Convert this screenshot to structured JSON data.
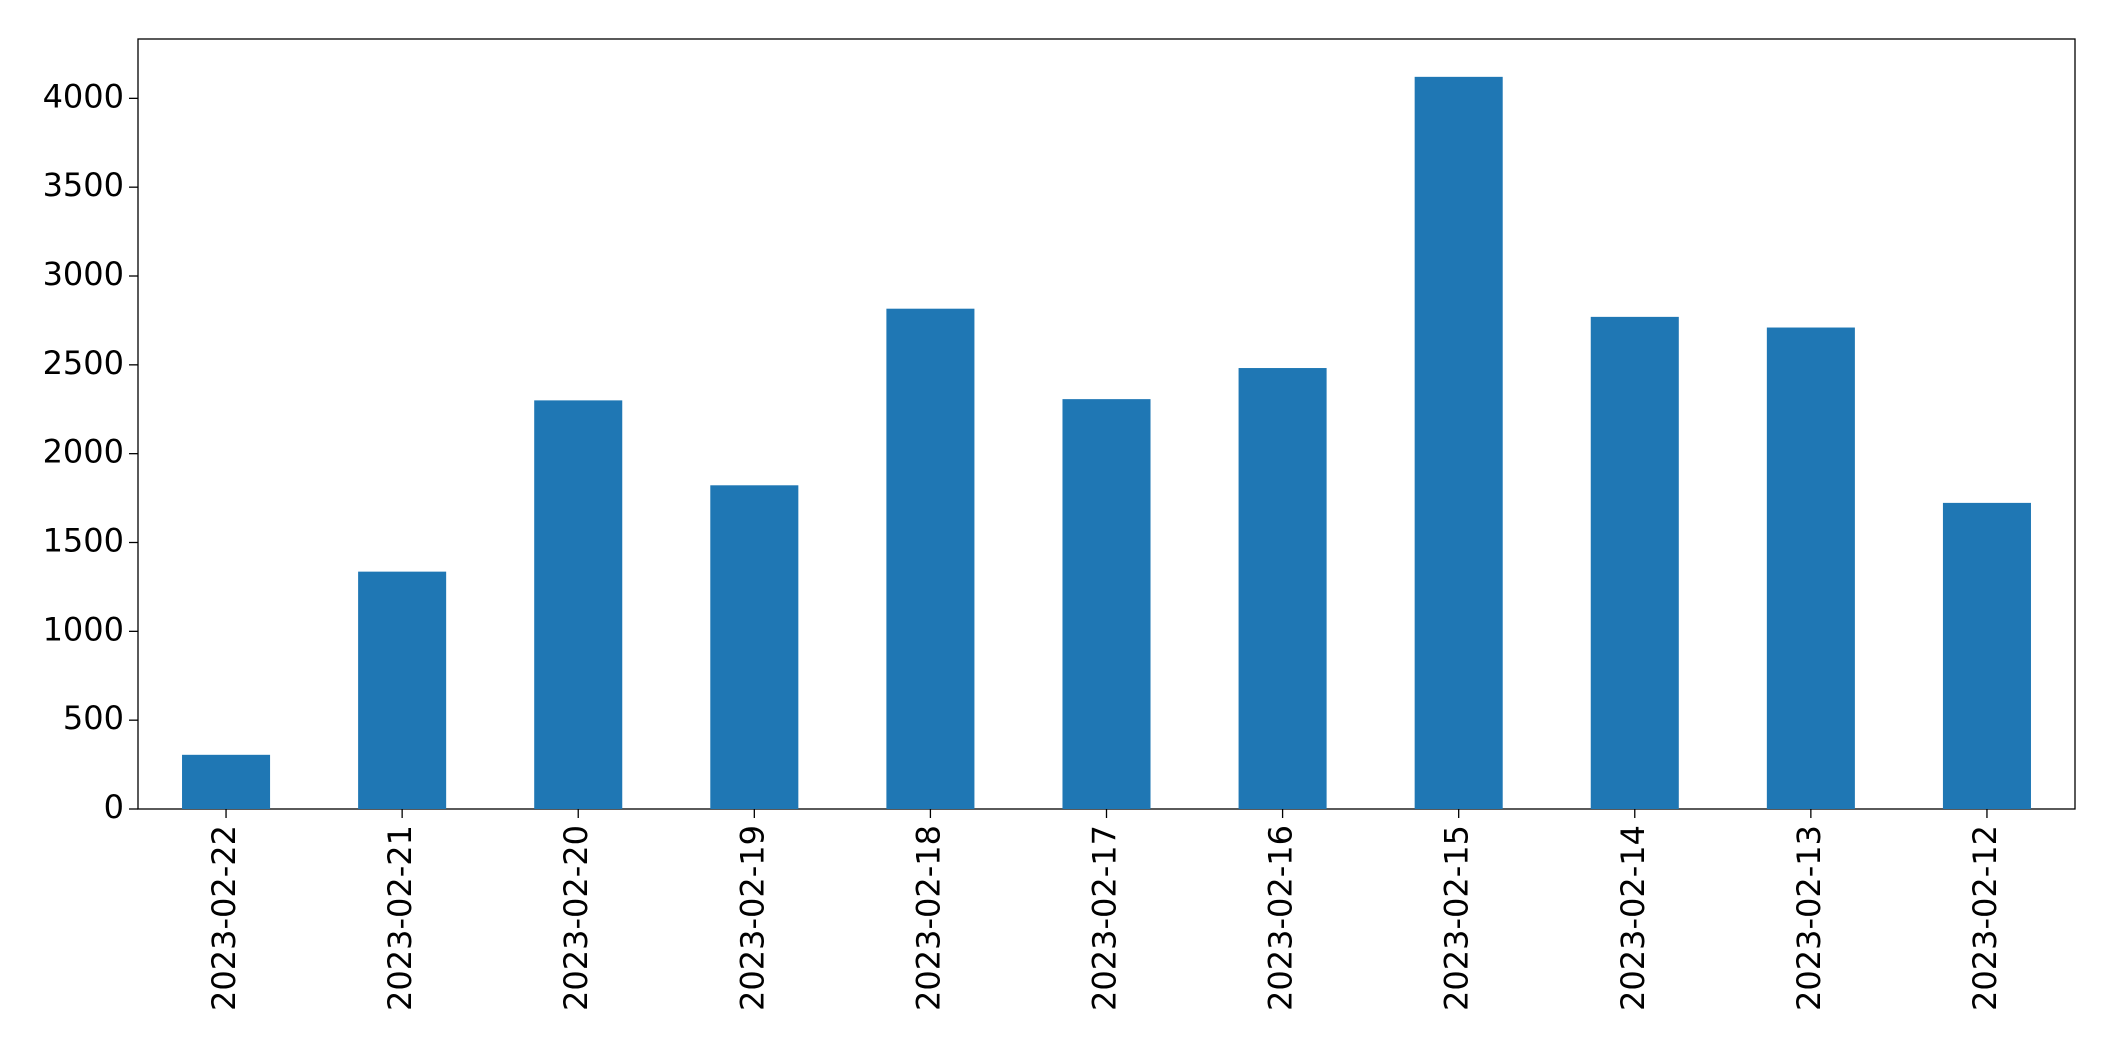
{
  "chart_data": {
    "type": "bar",
    "categories": [
      "2023-02-22",
      "2023-02-21",
      "2023-02-20",
      "2023-02-19",
      "2023-02-18",
      "2023-02-17",
      "2023-02-16",
      "2023-02-15",
      "2023-02-14",
      "2023-02-13",
      "2023-02-12"
    ],
    "values": [
      305,
      1336,
      2300,
      1822,
      2816,
      2307,
      2482,
      4121,
      2770,
      2710,
      1723
    ],
    "color": "#1f77b4",
    "ylim": [
      0,
      4334
    ],
    "yticks": [
      0,
      500,
      1000,
      1500,
      2000,
      2500,
      3000,
      3500,
      4000
    ],
    "grid": false
  }
}
